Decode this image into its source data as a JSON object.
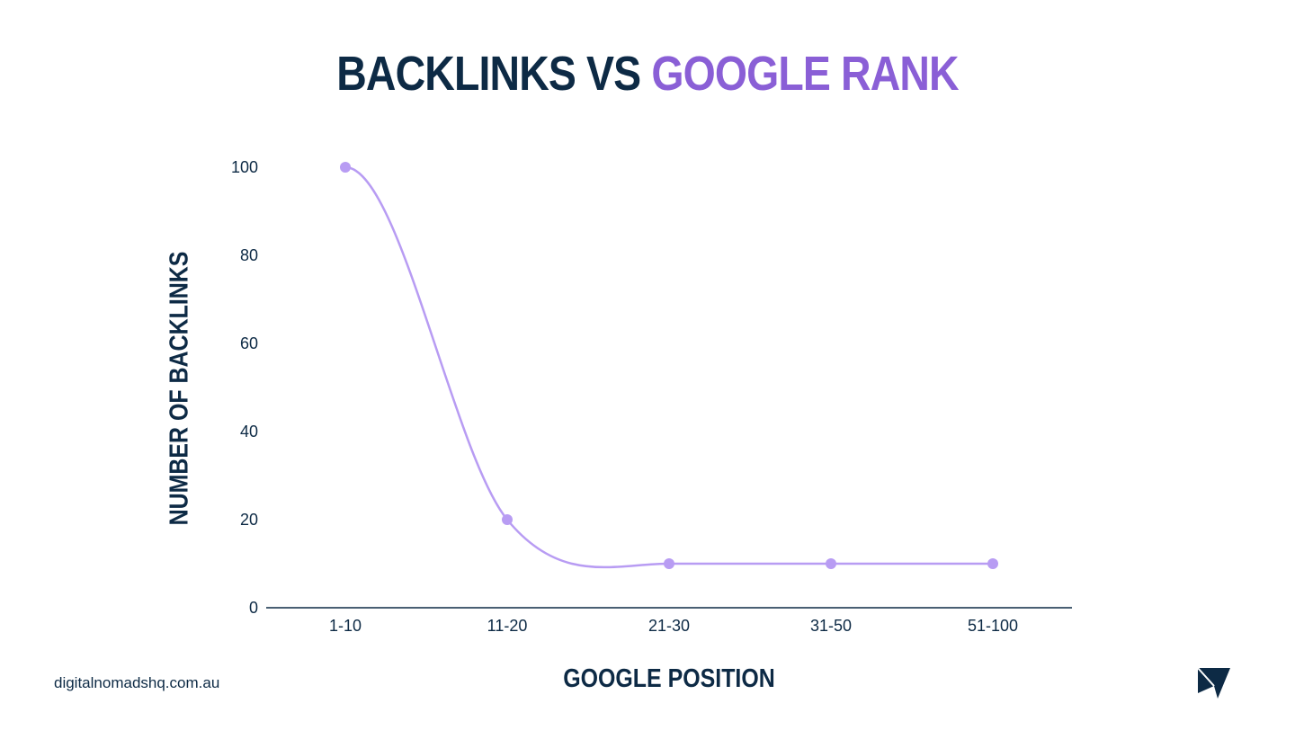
{
  "title": {
    "part1": "BACKLINKS VS",
    "part2": "GOOGLE RANK"
  },
  "footer": {
    "site": "digitalnomadshq.com.au",
    "logo_icon": "paper-plane-icon"
  },
  "colors": {
    "navy": "#0d2a45",
    "accent": "#8a5fd6",
    "line": "#b89cf3"
  },
  "chart_data": {
    "type": "line",
    "title": "BACKLINKS VS GOOGLE RANK",
    "xlabel": "GOOGLE POSITION",
    "ylabel": "NUMBER OF BACKLINKS",
    "categories": [
      "1-10",
      "11-20",
      "21-30",
      "31-50",
      "51-100"
    ],
    "values": [
      100,
      20,
      10,
      10,
      10
    ],
    "ylim": [
      0,
      100
    ],
    "yticks": [
      0,
      20,
      40,
      60,
      80,
      100
    ],
    "smooth": true,
    "grid": false,
    "legend": "none"
  }
}
